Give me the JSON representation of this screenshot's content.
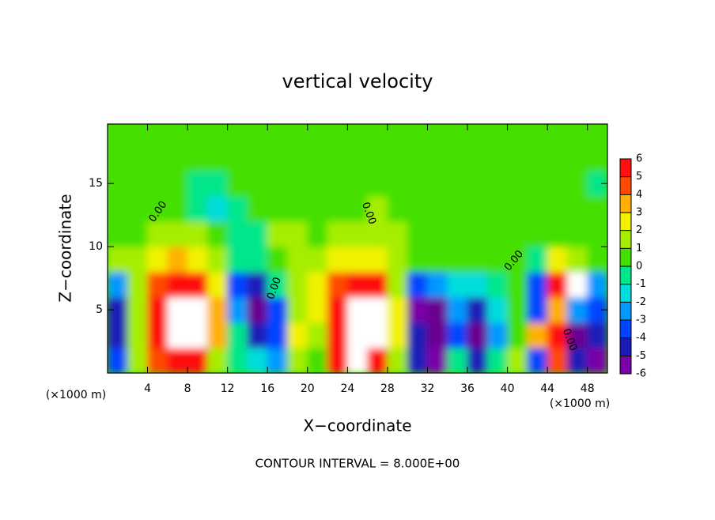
{
  "chart_data": {
    "type": "heatmap",
    "title": "vertical velocity",
    "x_label": "X−coordinate",
    "y_label": "Z−coordinate",
    "x_unit_label": "(×1000 m)",
    "footer": "CONTOUR INTERVAL = 8.000E+00",
    "contour_labels": [
      "0.00",
      "0.00",
      "0.00",
      "0.00",
      "0.00"
    ],
    "x": [
      1,
      3,
      5,
      7,
      9,
      11,
      13,
      15,
      17,
      19,
      21,
      23,
      25,
      27,
      29,
      31,
      33,
      35,
      37,
      39,
      41,
      43,
      45,
      47,
      49
    ],
    "y": [
      1,
      3,
      5,
      7,
      9,
      11,
      13,
      15,
      17,
      19
    ],
    "values": [
      [
        -4,
        1,
        4,
        6,
        5,
        1,
        -1,
        -2,
        -3,
        1,
        0,
        5,
        7,
        6,
        1,
        -5,
        -6,
        -1,
        -5,
        -1,
        1,
        -4,
        4,
        -5,
        -6
      ],
      [
        -5,
        1,
        5,
        8,
        7,
        3,
        -1,
        -5,
        -4,
        2,
        1,
        6,
        9,
        8,
        2,
        -5,
        -8,
        -4,
        -8,
        -3,
        0,
        3,
        5,
        -8,
        -5
      ],
      [
        -5,
        1,
        5,
        9,
        7,
        3,
        -3,
        -8,
        -4,
        1,
        2,
        5,
        9,
        8,
        2,
        -6,
        -8,
        -3,
        -5,
        -2,
        0,
        -4,
        3,
        -3,
        -4
      ],
      [
        -3,
        1,
        4,
        6,
        5,
        2,
        -4,
        -5,
        -1,
        1,
        2,
        4,
        6,
        5,
        1,
        -4,
        -3,
        -2,
        -2,
        -1,
        0,
        -4,
        5,
        7,
        -3
      ],
      [
        1,
        1,
        2,
        3,
        2,
        1,
        -1,
        -1,
        0,
        1,
        1,
        2,
        2,
        2,
        1,
        0,
        0,
        0,
        0,
        0,
        0,
        -1,
        2,
        1,
        0
      ],
      [
        0,
        0,
        1,
        1,
        1,
        0,
        -1,
        -1,
        1,
        1,
        0,
        1,
        1,
        1,
        1,
        0,
        0,
        0,
        0,
        0,
        0,
        0,
        0,
        0,
        0
      ],
      [
        0,
        0,
        0,
        0,
        -1,
        -2,
        -1,
        0,
        0,
        0,
        0,
        0,
        0,
        1,
        0,
        0,
        0,
        0,
        0,
        0,
        0,
        0,
        0,
        0,
        0
      ],
      [
        0,
        0,
        0,
        0,
        -1,
        -1,
        0,
        0,
        0,
        0,
        0,
        0,
        0,
        0,
        0,
        0,
        0,
        0,
        0,
        0,
        0,
        0,
        0,
        0,
        -1
      ],
      [
        0,
        0,
        0,
        0,
        0,
        0,
        0,
        0,
        0,
        0,
        0,
        0,
        0,
        0,
        0,
        0,
        0,
        0,
        0,
        0,
        0,
        0,
        0,
        0,
        0
      ],
      [
        0,
        0,
        0,
        0,
        0,
        0,
        0,
        0,
        0,
        0,
        0,
        0,
        0,
        0,
        0,
        0,
        0,
        0,
        0,
        0,
        0,
        0,
        0,
        0,
        0
      ]
    ],
    "xlim": [
      0,
      50
    ],
    "ylim": [
      0,
      19.7
    ],
    "xticks": [
      4,
      8,
      12,
      16,
      20,
      24,
      28,
      32,
      36,
      40,
      44,
      48
    ],
    "yticks": [
      5,
      10,
      15
    ],
    "clim": [
      -6,
      6
    ],
    "cticks": [
      -6,
      -5,
      -4,
      -3,
      -2,
      -1,
      0,
      1,
      2,
      3,
      4,
      5,
      6
    ],
    "colors": [
      "#7a00a8",
      "#1a1ab8",
      "#0044ff",
      "#0099ff",
      "#00dddd",
      "#00e68a",
      "#44e000",
      "#a6ee00",
      "#f2f200",
      "#ffb000",
      "#ff4a00",
      "#ff1010"
    ],
    "over_color": "#ffffff",
    "under_color": "#6a0090"
  }
}
